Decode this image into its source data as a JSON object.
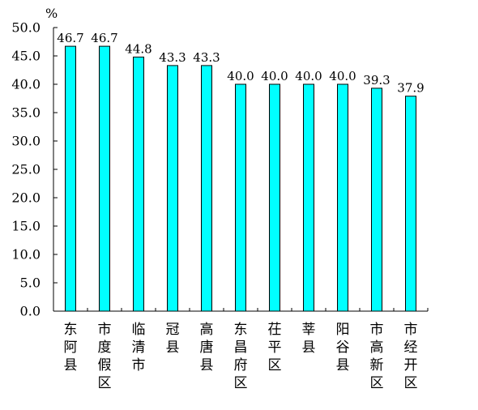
{
  "chart_data": {
    "type": "bar",
    "title": "",
    "xlabel": "",
    "ylabel": "%",
    "ylim": [
      0,
      50
    ],
    "yticks": [
      "0.0",
      "5.0",
      "10.0",
      "15.0",
      "20.0",
      "25.0",
      "30.0",
      "35.0",
      "40.0",
      "45.0",
      "50.0"
    ],
    "categories": [
      "东阿县",
      "市度假区",
      "临清市",
      "冠县",
      "高唐县",
      "东昌府区",
      "茌平区",
      "莘县",
      "阳谷县",
      "市高新区",
      "市经开区"
    ],
    "values": [
      46.7,
      46.7,
      44.8,
      43.3,
      43.3,
      40.0,
      40.0,
      40.0,
      40.0,
      39.3,
      37.9
    ],
    "data_labels": [
      "46.7",
      "46.7",
      "44.8",
      "43.3",
      "43.3",
      "40.0",
      "40.0",
      "40.0",
      "40.0",
      "39.3",
      "37.9"
    ],
    "grid": false,
    "legend": "none",
    "colors": {
      "bar_fill": "#00FFFF",
      "bar_stroke": "#000000",
      "axis": "#000000"
    }
  }
}
